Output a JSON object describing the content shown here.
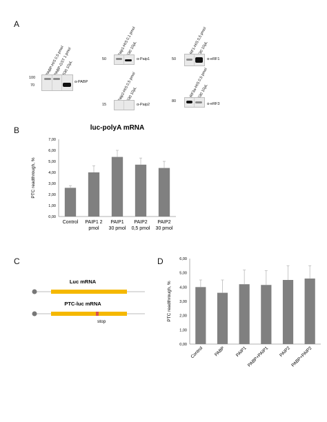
{
  "panels": {
    "a": "A",
    "b": "B",
    "c": "C",
    "d": "D"
  },
  "blots": {
    "pabp": {
      "lanes": [
        "PABP-HIS 0,5 pmol",
        "PABP-GST 1 pmol",
        "S30 10µL"
      ],
      "markers": [
        "100",
        "70"
      ],
      "antibody": "α-PABP"
    },
    "paip1": {
      "lanes": [
        "Paip1-HIS 0,1 pmol",
        "S30 10µL"
      ],
      "markers": [
        "50"
      ],
      "antibody": "α-Paip1"
    },
    "paip2": {
      "lanes": [
        "Paip2-HIS 0,5 pmol",
        "S30 10µL"
      ],
      "markers": [
        "15"
      ],
      "antibody": "α-Paip2"
    },
    "erf1": {
      "lanes": [
        "eRF1-HIS 0,5 pmol",
        "S30 10µL"
      ],
      "markers": [
        "50"
      ],
      "antibody": "α-eRF1"
    },
    "erf3": {
      "lanes": [
        "eRF3a-HIS 0,5 pmol",
        "S30 10µL"
      ],
      "markers": [
        "80"
      ],
      "antibody": "α-eRF3"
    }
  },
  "diagram": {
    "luc_label": "Luc mRNA",
    "ptc_label": "PTC-luc mRNA",
    "stop_label": "stop",
    "colors": {
      "cds": "#f5b800",
      "stop": "#d9534f",
      "cap": "#777777",
      "line": "#bbbbbb"
    }
  },
  "chart_data": [
    {
      "type": "bar",
      "title": "luc-polyA mRNA",
      "xlabel": "",
      "ylabel": "PTC readthrough, %",
      "categories": [
        "Control",
        "PAIP1 2\npmol",
        "PAIP1\n30 pmol",
        "PAIP2\n0,5 pmol",
        "PAIP2\n30 pmol"
      ],
      "values": [
        2.6,
        4.0,
        5.4,
        4.7,
        4.4
      ],
      "errors": [
        0.2,
        0.6,
        0.6,
        0.6,
        0.6
      ],
      "ylim": [
        0,
        7
      ],
      "yticks": [
        "0,00",
        "1,00",
        "2,00",
        "3,00",
        "4,00",
        "5,00",
        "6,00",
        "7,00"
      ],
      "grid": false,
      "bar_color": "#808080"
    },
    {
      "type": "bar",
      "title": "",
      "xlabel": "",
      "ylabel": "PTC readthrough, %",
      "categories": [
        "Control",
        "PABP",
        "PAIP1",
        "PABP+PAIP1",
        "PAIP2",
        "PABP+PAIP2"
      ],
      "values": [
        4.0,
        3.6,
        4.2,
        4.15,
        4.5,
        4.6
      ],
      "errors": [
        0.5,
        0.9,
        1.0,
        1.0,
        1.0,
        0.9
      ],
      "ylim": [
        0,
        6
      ],
      "yticks": [
        "0,00",
        "1,00",
        "2,00",
        "3,00",
        "4,00",
        "5,00",
        "6,00"
      ],
      "grid": false,
      "bar_color": "#808080"
    }
  ]
}
